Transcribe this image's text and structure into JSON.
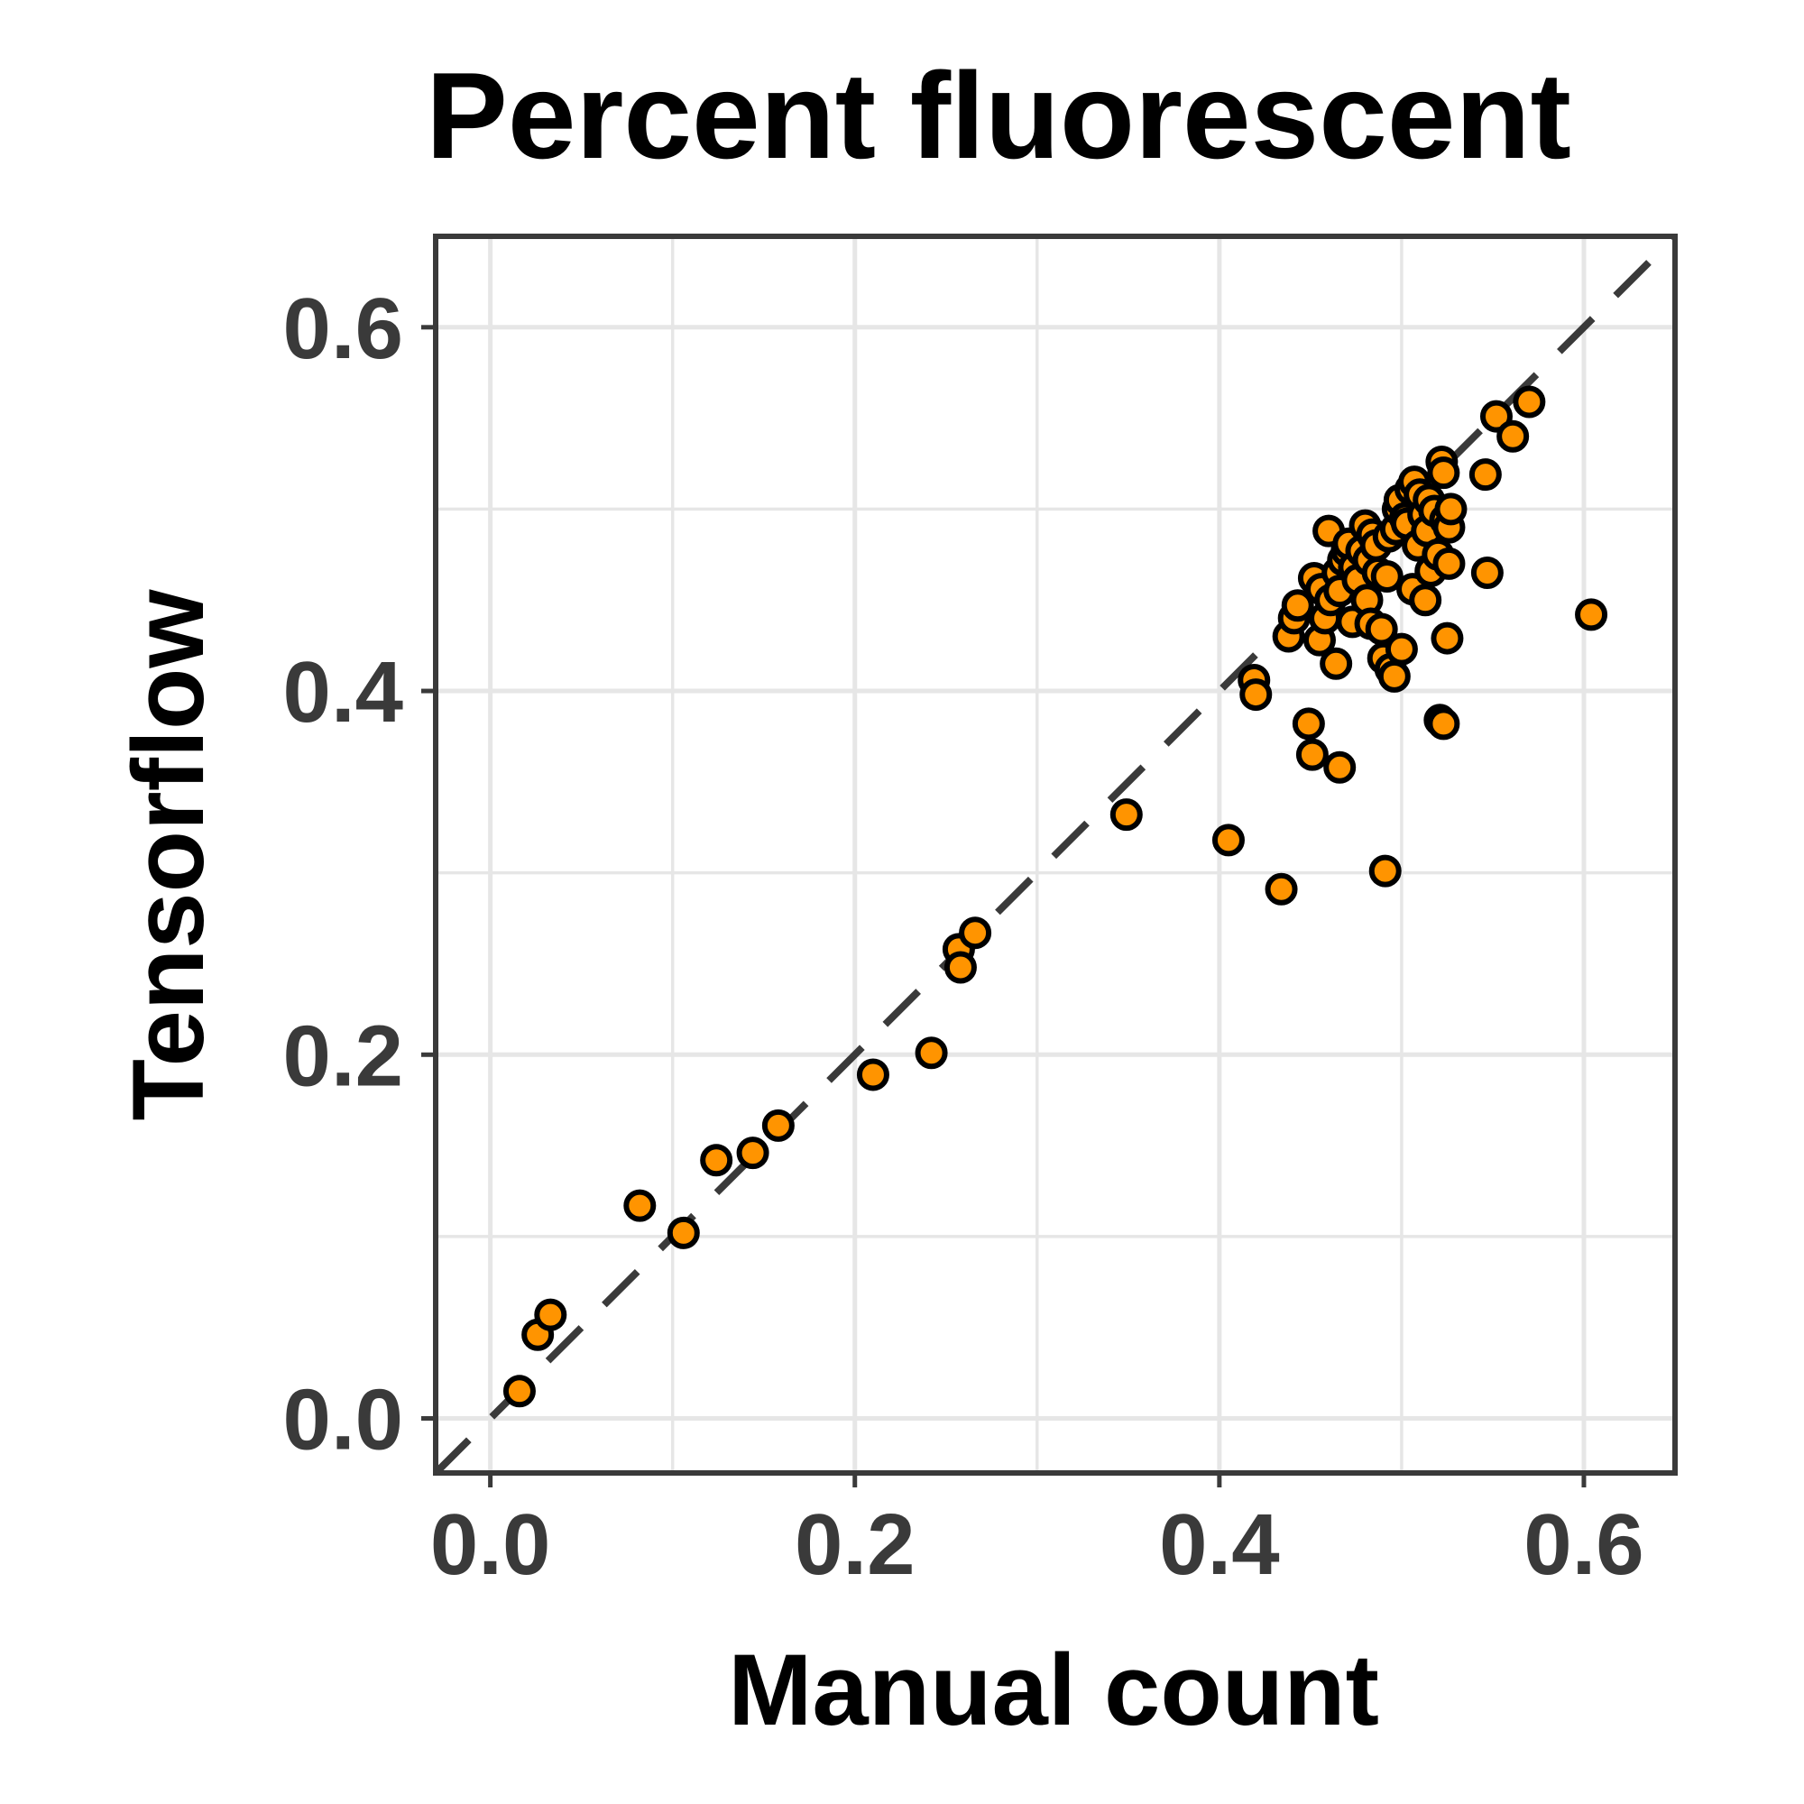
{
  "chart_data": {
    "type": "scatter",
    "title": "Percent fluorescent",
    "xlabel": "Manual count",
    "ylabel": "Tensorflow",
    "xlim": [
      -0.03,
      0.65
    ],
    "ylim": [
      -0.03,
      0.65
    ],
    "x_ticks": [
      "0.0",
      "0.2",
      "0.4",
      "0.6"
    ],
    "y_ticks": [
      "0.0",
      "0.2",
      "0.4",
      "0.6"
    ],
    "x_tick_values": [
      0.0,
      0.2,
      0.4,
      0.6
    ],
    "y_tick_values": [
      0.0,
      0.2,
      0.4,
      0.6
    ],
    "grid": true,
    "reference_line": "y = x (dashed)",
    "colors": {
      "point_fill": "#ff9400",
      "point_stroke": "#000000",
      "frame": "#3a3a3a",
      "grid": "#e6e6e6",
      "reference_line": "#3a3a3a"
    },
    "points": [
      [
        0.016,
        0.015
      ],
      [
        0.026,
        0.046
      ],
      [
        0.033,
        0.057
      ],
      [
        0.082,
        0.117
      ],
      [
        0.106,
        0.102
      ],
      [
        0.124,
        0.142
      ],
      [
        0.144,
        0.146
      ],
      [
        0.158,
        0.161
      ],
      [
        0.21,
        0.189
      ],
      [
        0.242,
        0.201
      ],
      [
        0.257,
        0.258
      ],
      [
        0.258,
        0.248
      ],
      [
        0.266,
        0.267
      ],
      [
        0.349,
        0.332
      ],
      [
        0.405,
        0.318
      ],
      [
        0.419,
        0.406
      ],
      [
        0.42,
        0.398
      ],
      [
        0.434,
        0.291
      ],
      [
        0.438,
        0.43
      ],
      [
        0.441,
        0.44
      ],
      [
        0.443,
        0.447
      ],
      [
        0.449,
        0.382
      ],
      [
        0.451,
        0.365
      ],
      [
        0.452,
        0.462
      ],
      [
        0.455,
        0.428
      ],
      [
        0.456,
        0.456
      ],
      [
        0.458,
        0.44
      ],
      [
        0.46,
        0.488
      ],
      [
        0.461,
        0.45
      ],
      [
        0.464,
        0.415
      ],
      [
        0.465,
        0.465
      ],
      [
        0.466,
        0.455
      ],
      [
        0.466,
        0.358
      ],
      [
        0.468,
        0.472
      ],
      [
        0.47,
        0.477
      ],
      [
        0.471,
        0.481
      ],
      [
        0.473,
        0.438
      ],
      [
        0.474,
        0.468
      ],
      [
        0.476,
        0.461
      ],
      [
        0.478,
        0.477
      ],
      [
        0.48,
        0.491
      ],
      [
        0.481,
        0.45
      ],
      [
        0.482,
        0.472
      ],
      [
        0.483,
        0.437
      ],
      [
        0.484,
        0.486
      ],
      [
        0.486,
        0.48
      ],
      [
        0.487,
        0.465
      ],
      [
        0.489,
        0.434
      ],
      [
        0.49,
        0.418
      ],
      [
        0.491,
        0.301
      ],
      [
        0.492,
        0.463
      ],
      [
        0.493,
        0.485
      ],
      [
        0.494,
        0.412
      ],
      [
        0.496,
        0.408
      ],
      [
        0.497,
        0.489
      ],
      [
        0.498,
        0.5
      ],
      [
        0.499,
        0.505
      ],
      [
        0.5,
        0.423
      ],
      [
        0.502,
        0.495
      ],
      [
        0.503,
        0.492
      ],
      [
        0.505,
        0.511
      ],
      [
        0.506,
        0.456
      ],
      [
        0.507,
        0.515
      ],
      [
        0.509,
        0.48
      ],
      [
        0.51,
        0.508
      ],
      [
        0.512,
        0.497
      ],
      [
        0.513,
        0.45
      ],
      [
        0.514,
        0.488
      ],
      [
        0.515,
        0.505
      ],
      [
        0.516,
        0.466
      ],
      [
        0.518,
        0.499
      ],
      [
        0.52,
        0.475
      ],
      [
        0.521,
        0.384
      ],
      [
        0.522,
        0.526
      ],
      [
        0.523,
        0.52
      ],
      [
        0.523,
        0.382
      ],
      [
        0.524,
        0.494
      ],
      [
        0.525,
        0.429
      ],
      [
        0.526,
        0.47
      ],
      [
        0.526,
        0.49
      ],
      [
        0.527,
        0.5
      ],
      [
        0.546,
        0.519
      ],
      [
        0.547,
        0.465
      ],
      [
        0.552,
        0.551
      ],
      [
        0.561,
        0.54
      ],
      [
        0.57,
        0.559
      ],
      [
        0.604,
        0.442
      ]
    ]
  }
}
